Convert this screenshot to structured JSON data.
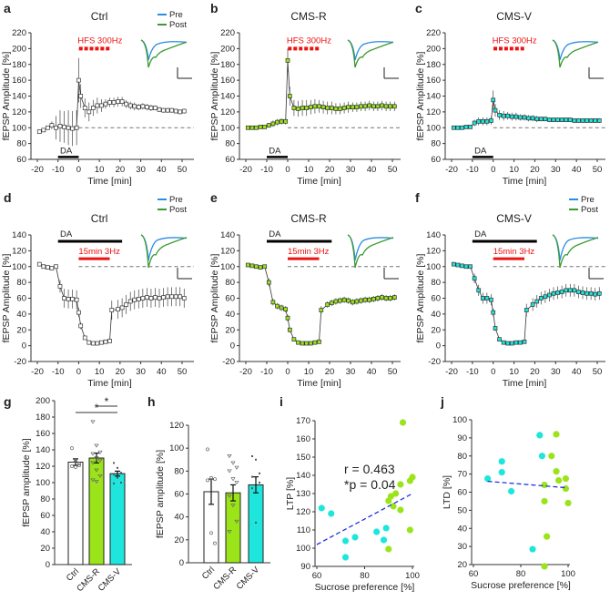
{
  "colors": {
    "ctrl": "#ffffff",
    "cms_r": "#9be41a",
    "cms_v": "#1ee6dc",
    "pre": "#2b8ce6",
    "post": "#3a9a2e",
    "stim": "#ee1111",
    "fit": "#2233dd"
  },
  "chart_data": [
    {
      "panel": "a",
      "type": "line",
      "title": "Ctrl",
      "xlabel": "Time [min]",
      "ylabel": "fEPSP Amplitude [%]",
      "xlim": [
        -20,
        50
      ],
      "ylim": [
        60,
        220
      ],
      "xticks": [
        -20,
        -10,
        0,
        10,
        20,
        30,
        40,
        50
      ],
      "yticks": [
        60,
        80,
        100,
        120,
        140,
        160,
        180,
        200,
        220
      ],
      "baseline": 100,
      "legend": [
        "Pre",
        "Post"
      ],
      "stim_label": "HFS 300Hz",
      "drug_label": "DA",
      "drug_range": [
        -10,
        0
      ],
      "marker": "open-square",
      "color": "#ffffff",
      "t": [
        -19,
        -17,
        -15,
        -13,
        -11,
        -9,
        -7,
        -5,
        -3,
        -1,
        0,
        1,
        3,
        5,
        7,
        9,
        11,
        13,
        15,
        17,
        19,
        21,
        23,
        25,
        27,
        29,
        31,
        33,
        35,
        37,
        39,
        41,
        43,
        45,
        47,
        49,
        51
      ],
      "mean": [
        95,
        97,
        100,
        103,
        100,
        102,
        101,
        100,
        99,
        100,
        160,
        140,
        125,
        120,
        125,
        128,
        128,
        130,
        132,
        132,
        133,
        133,
        130,
        128,
        127,
        126,
        127,
        126,
        125,
        125,
        123,
        122,
        122,
        122,
        121,
        120,
        121
      ],
      "sem": [
        2,
        2,
        2,
        5,
        15,
        20,
        20,
        22,
        22,
        22,
        28,
        15,
        12,
        12,
        10,
        10,
        8,
        6,
        6,
        6,
        6,
        6,
        5,
        5,
        5,
        4,
        4,
        4,
        4,
        3,
        3,
        3,
        3,
        3,
        3,
        3,
        3
      ]
    },
    {
      "panel": "b",
      "type": "line",
      "title": "CMS-R",
      "xlabel": "Time [min]",
      "ylabel": "fEPSP Amplitude [%]",
      "xlim": [
        -20,
        50
      ],
      "ylim": [
        60,
        220
      ],
      "xticks": [
        -20,
        -10,
        0,
        10,
        20,
        30,
        40,
        50
      ],
      "yticks": [
        60,
        80,
        100,
        120,
        140,
        160,
        180,
        200,
        220
      ],
      "baseline": 100,
      "stim_label": "HFS 300Hz",
      "drug_label": "DA",
      "drug_range": [
        -10,
        0
      ],
      "marker": "open-square",
      "color": "#9be41a",
      "t": [
        -19,
        -17,
        -15,
        -13,
        -11,
        -9,
        -7,
        -5,
        -3,
        -1,
        0,
        1,
        3,
        5,
        7,
        9,
        11,
        13,
        15,
        17,
        19,
        21,
        23,
        25,
        27,
        29,
        31,
        33,
        35,
        37,
        39,
        41,
        43,
        45,
        47,
        49,
        51
      ],
      "mean": [
        100,
        100,
        100,
        101,
        101,
        103,
        105,
        107,
        108,
        108,
        185,
        140,
        125,
        124,
        125,
        125,
        126,
        127,
        127,
        126,
        125,
        125,
        124,
        124,
        125,
        126,
        126,
        126,
        127,
        127,
        128,
        127,
        127,
        128,
        127,
        127,
        127
      ],
      "sem": [
        2,
        2,
        2,
        2,
        2,
        3,
        4,
        4,
        4,
        4,
        15,
        12,
        10,
        10,
        10,
        10,
        9,
        9,
        8,
        8,
        8,
        8,
        7,
        7,
        7,
        7,
        6,
        6,
        6,
        6,
        6,
        6,
        6,
        6,
        6,
        6,
        6
      ]
    },
    {
      "panel": "c",
      "type": "line",
      "title": "CMS-V",
      "xlabel": "Time [min]",
      "ylabel": "fEPSP Amplitude [%]",
      "xlim": [
        -20,
        50
      ],
      "ylim": [
        60,
        220
      ],
      "xticks": [
        -20,
        -10,
        0,
        10,
        20,
        30,
        40,
        50
      ],
      "yticks": [
        60,
        80,
        100,
        120,
        140,
        160,
        180,
        200,
        220
      ],
      "baseline": 100,
      "stim_label": "HFS 300Hz",
      "drug_label": "DA",
      "drug_range": [
        -10,
        0
      ],
      "marker": "open-square",
      "color": "#1ee6dc",
      "t": [
        -19,
        -17,
        -15,
        -13,
        -11,
        -9,
        -7,
        -5,
        -3,
        -1,
        0,
        1,
        3,
        5,
        7,
        9,
        11,
        13,
        15,
        17,
        19,
        21,
        23,
        25,
        27,
        29,
        31,
        33,
        35,
        37,
        39,
        41,
        43,
        45,
        47,
        49,
        51
      ],
      "mean": [
        100,
        100,
        100,
        101,
        101,
        106,
        108,
        108,
        108,
        109,
        135,
        122,
        116,
        115,
        115,
        114,
        114,
        113,
        113,
        112,
        112,
        111,
        111,
        111,
        110,
        110,
        110,
        110,
        110,
        110,
        109,
        109,
        109,
        109,
        109,
        109,
        109
      ],
      "sem": [
        2,
        2,
        2,
        2,
        2,
        4,
        5,
        5,
        5,
        5,
        12,
        8,
        6,
        6,
        5,
        5,
        5,
        4,
        4,
        4,
        4,
        4,
        3,
        3,
        3,
        3,
        3,
        3,
        3,
        3,
        3,
        3,
        3,
        3,
        3,
        3,
        3
      ]
    },
    {
      "panel": "d",
      "type": "line",
      "title": "Ctrl",
      "xlabel": "Time [min]",
      "ylabel": "fEPSP Amplitude [%]",
      "xlim": [
        -20,
        50
      ],
      "ylim": [
        -20,
        140
      ],
      "xticks": [
        -20,
        -10,
        0,
        10,
        20,
        30,
        40,
        50
      ],
      "yticks": [
        -20,
        0,
        20,
        40,
        60,
        80,
        100,
        120,
        140
      ],
      "baseline": 100,
      "legend": [
        "Pre",
        "Post"
      ],
      "stim_label": "15min 3Hz",
      "stim_range": [
        0,
        15
      ],
      "drug_label": "DA",
      "drug_range": [
        -10,
        21
      ],
      "marker": "open-square",
      "color": "#ffffff",
      "t": [
        -19,
        -17,
        -15,
        -13,
        -11,
        -9,
        -7,
        -5,
        -3,
        -1,
        0,
        1,
        3,
        5,
        7,
        9,
        11,
        13,
        15,
        16,
        19,
        21,
        23,
        25,
        27,
        29,
        31,
        33,
        35,
        37,
        39,
        41,
        43,
        45,
        47,
        49,
        51
      ],
      "mean": [
        103,
        100,
        99,
        98,
        100,
        75,
        60,
        59,
        59,
        58,
        42,
        25,
        10,
        4,
        3,
        3,
        4,
        5,
        6,
        45,
        46,
        48,
        52,
        56,
        58,
        59,
        60,
        61,
        60,
        61,
        60,
        61,
        62,
        62,
        62,
        62,
        60
      ],
      "sem": [
        2,
        2,
        2,
        2,
        2,
        8,
        12,
        12,
        12,
        12,
        6,
        4,
        2,
        1,
        1,
        1,
        1,
        1,
        2,
        12,
        12,
        12,
        12,
        12,
        12,
        12,
        12,
        12,
        12,
        12,
        12,
        12,
        12,
        12,
        12,
        12,
        12
      ]
    },
    {
      "panel": "e",
      "type": "line",
      "title": "CMS-R",
      "xlabel": "Time [min]",
      "ylabel": "fEPSP Amplitude [%]",
      "xlim": [
        -20,
        50
      ],
      "ylim": [
        -20,
        140
      ],
      "xticks": [
        -20,
        -10,
        0,
        10,
        20,
        30,
        40,
        50
      ],
      "yticks": [
        -20,
        0,
        20,
        40,
        60,
        80,
        100,
        120,
        140
      ],
      "baseline": 100,
      "stim_label": "15min 3Hz",
      "stim_range": [
        0,
        15
      ],
      "drug_label": "DA",
      "drug_range": [
        -10,
        21
      ],
      "marker": "open-square",
      "color": "#9be41a",
      "t": [
        -19,
        -17,
        -15,
        -13,
        -11,
        -9,
        -7,
        -5,
        -3,
        -1,
        0,
        1,
        3,
        5,
        7,
        9,
        11,
        13,
        15,
        16,
        19,
        21,
        23,
        25,
        27,
        29,
        31,
        33,
        35,
        37,
        39,
        41,
        43,
        45,
        47,
        49,
        51
      ],
      "mean": [
        102,
        101,
        100,
        99,
        100,
        80,
        55,
        50,
        48,
        46,
        35,
        20,
        8,
        4,
        3,
        3,
        3,
        4,
        5,
        45,
        52,
        54,
        56,
        57,
        58,
        57,
        55,
        56,
        57,
        58,
        58,
        59,
        60,
        61,
        60,
        60,
        61
      ],
      "sem": [
        2,
        2,
        2,
        2,
        2,
        5,
        4,
        4,
        4,
        4,
        4,
        3,
        2,
        1,
        1,
        1,
        1,
        1,
        1,
        5,
        4,
        4,
        4,
        4,
        4,
        4,
        4,
        4,
        4,
        4,
        4,
        4,
        4,
        4,
        4,
        4,
        4
      ]
    },
    {
      "panel": "f",
      "type": "line",
      "title": "CMS-V",
      "xlabel": "Time [min]",
      "ylabel": "fEPSP Amplitude [%]",
      "xlim": [
        -20,
        50
      ],
      "ylim": [
        -20,
        140
      ],
      "xticks": [
        -20,
        -10,
        0,
        10,
        20,
        30,
        40,
        50
      ],
      "yticks": [
        -20,
        0,
        20,
        40,
        60,
        80,
        100,
        120,
        140
      ],
      "baseline": 100,
      "legend": [
        "Pre",
        "Post"
      ],
      "stim_label": "15min 3Hz",
      "stim_range": [
        0,
        15
      ],
      "drug_label": "DA",
      "drug_range": [
        -10,
        21
      ],
      "marker": "open-square",
      "color": "#1ee6dc",
      "t": [
        -19,
        -17,
        -15,
        -13,
        -11,
        -9,
        -7,
        -5,
        -3,
        -1,
        0,
        1,
        3,
        5,
        7,
        9,
        11,
        13,
        15,
        16,
        19,
        21,
        23,
        25,
        27,
        29,
        31,
        33,
        35,
        37,
        39,
        41,
        43,
        45,
        47,
        49,
        51
      ],
      "mean": [
        103,
        102,
        101,
        100,
        100,
        85,
        70,
        60,
        60,
        58,
        42,
        22,
        8,
        4,
        3,
        3,
        4,
        4,
        5,
        45,
        52,
        56,
        60,
        62,
        64,
        66,
        67,
        68,
        70,
        70,
        70,
        68,
        67,
        66,
        66,
        65,
        66
      ],
      "sem": [
        2,
        2,
        2,
        2,
        2,
        6,
        7,
        7,
        7,
        7,
        5,
        3,
        2,
        1,
        1,
        1,
        1,
        1,
        1,
        8,
        8,
        8,
        8,
        8,
        8,
        8,
        8,
        8,
        8,
        8,
        8,
        8,
        8,
        8,
        8,
        8,
        8
      ]
    },
    {
      "panel": "g",
      "type": "bar",
      "ylabel": "fEPSP amplitude [%]",
      "ylim": [
        0,
        200
      ],
      "yticks": [
        0,
        20,
        40,
        60,
        80,
        100,
        120,
        140,
        160,
        180,
        200
      ],
      "categories": [
        "Ctrl",
        "CMS-R",
        "CMS-V"
      ],
      "values": [
        125,
        130,
        111
      ],
      "sem": [
        4,
        6,
        3
      ],
      "points": [
        [
          142,
          127,
          123,
          120,
          119,
          121
        ],
        [
          174,
          145,
          137,
          135,
          130,
          127,
          124,
          115,
          108,
          103,
          101
        ],
        [
          124,
          118,
          112,
          110,
          106,
          100,
          99
        ]
      ],
      "significance": [
        {
          "pair": [
            "Ctrl",
            "CMS-V"
          ],
          "label": "*"
        },
        {
          "pair": [
            "CMS-R",
            "CMS-V"
          ],
          "label": "*"
        }
      ]
    },
    {
      "panel": "h",
      "type": "bar",
      "ylabel": "fEPSP amplitude [%]",
      "ylim": [
        0,
        120
      ],
      "yticks": [
        0,
        20,
        40,
        60,
        80,
        100,
        120
      ],
      "categories": [
        "Ctrl",
        "CMS-R",
        "CMS-V"
      ],
      "values": [
        62,
        61,
        68
      ],
      "sem": [
        11,
        7,
        7
      ],
      "points": [
        [
          99,
          74,
          73,
          72,
          26,
          17
        ],
        [
          93,
          87,
          83,
          80,
          73,
          70,
          58,
          50,
          36,
          27
        ],
        [
          93,
          90,
          78,
          75,
          74,
          70,
          65,
          35
        ]
      ]
    },
    {
      "panel": "i",
      "type": "scatter",
      "xlabel": "Sucrose preference [%]",
      "ylabel": "LTP [%]",
      "xlim": [
        60,
        100
      ],
      "ylim": [
        90,
        170
      ],
      "xticks": [
        60,
        80,
        100
      ],
      "yticks": [
        90,
        100,
        110,
        120,
        130,
        140,
        150,
        160,
        170
      ],
      "annotation": [
        "r = 0.463",
        "*p = 0.04"
      ],
      "fit": [
        [
          60,
          102
        ],
        [
          100,
          130
        ]
      ],
      "series": [
        {
          "group": "CMS-V",
          "points": [
            [
              62,
              122
            ],
            [
              66,
              119
            ],
            [
              72,
              104
            ],
            [
              72,
              95
            ],
            [
              76,
              106
            ],
            [
              85,
              109
            ],
            [
              88,
              104.5
            ],
            [
              89,
              111
            ]
          ]
        },
        {
          "group": "CMS-R",
          "points": [
            [
              90,
              99.5
            ],
            [
              90,
              126
            ],
            [
              91,
              128.5
            ],
            [
              92,
              123
            ],
            [
              93,
              130
            ],
            [
              95,
              135
            ],
            [
              95,
              121
            ],
            [
              96,
              169
            ],
            [
              99,
              137
            ],
            [
              99,
              110
            ],
            [
              100,
              139
            ]
          ]
        }
      ]
    },
    {
      "panel": "j",
      "type": "scatter",
      "xlabel": "Sucrose preference [%]",
      "ylabel": "LTD [%]",
      "xlim": [
        60,
        100
      ],
      "ylim": [
        20,
        100
      ],
      "xticks": [
        60,
        80,
        100
      ],
      "yticks": [
        20,
        30,
        40,
        50,
        60,
        70,
        80,
        90,
        100
      ],
      "fit": [
        [
          66,
          66
        ],
        [
          99,
          62.5
        ]
      ],
      "series": [
        {
          "group": "CMS-V",
          "points": [
            [
              66,
              67.5
            ],
            [
              72,
              77
            ],
            [
              72,
              71
            ],
            [
              76,
              60.5
            ],
            [
              85,
              28.5
            ],
            [
              88,
              91.5
            ],
            [
              89,
              80
            ]
          ]
        },
        {
          "group": "CMS-R",
          "points": [
            [
              90,
              64
            ],
            [
              90,
              55
            ],
            [
              90,
              19
            ],
            [
              91,
              35.5
            ],
            [
              93,
              80
            ],
            [
              95,
              92
            ],
            [
              95,
              71.5
            ],
            [
              96,
              66.5
            ],
            [
              99,
              67.5
            ],
            [
              99,
              62
            ],
            [
              100,
              54
            ]
          ]
        }
      ]
    }
  ]
}
